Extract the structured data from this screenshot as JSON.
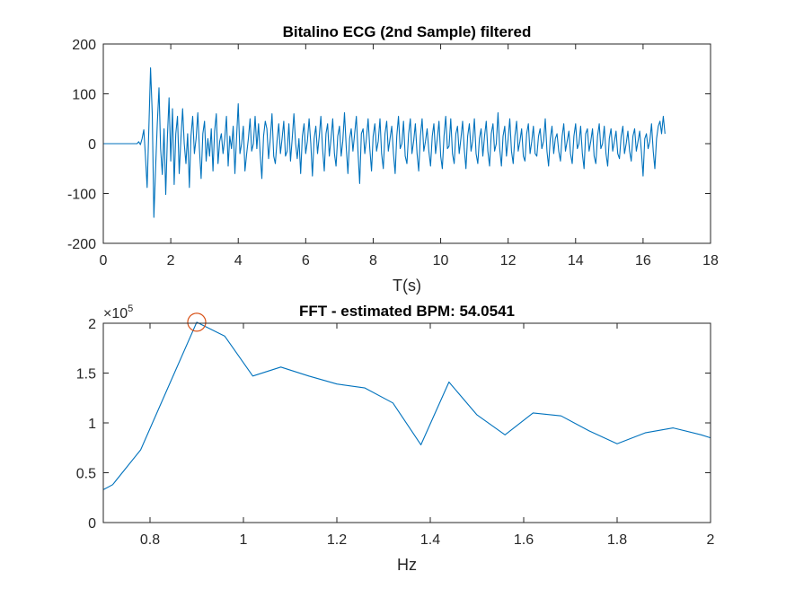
{
  "chart_data": [
    {
      "type": "line",
      "title": "Bitalino ECG (2nd Sample) filtered",
      "xlabel": "T(s)",
      "ylabel": "",
      "xlim": [
        0,
        18
      ],
      "ylim": [
        -200,
        200
      ],
      "xticks": [
        "0",
        "2",
        "4",
        "6",
        "8",
        "10",
        "12",
        "14",
        "16",
        "18"
      ],
      "yticks": [
        "-200",
        "-100",
        "0",
        "100",
        "200"
      ],
      "grid": false,
      "line_color": "#0072BD",
      "series": [
        {
          "x": [
            0,
            0.5,
            1.0,
            1.05,
            1.1,
            1.15,
            1.2,
            1.25,
            1.3,
            1.35,
            1.4,
            1.45,
            1.5,
            1.55,
            1.6,
            1.65,
            1.7,
            1.75,
            1.8,
            1.85,
            1.9,
            1.95,
            2.0,
            2.05,
            2.1,
            2.15,
            2.2,
            2.25,
            2.3,
            2.35,
            2.4,
            2.45,
            2.5,
            2.55,
            2.6,
            2.65,
            2.7,
            2.75,
            2.8,
            2.85,
            2.9,
            2.95,
            3.0,
            3.05,
            3.1,
            3.15,
            3.2,
            3.25,
            3.3,
            3.35,
            3.4,
            3.45,
            3.5,
            3.55,
            3.6,
            3.65,
            3.7,
            3.75,
            3.8,
            3.85,
            3.9,
            3.95,
            4.0,
            4.05,
            4.1,
            4.15,
            4.2,
            4.25,
            4.3,
            4.35,
            4.4,
            4.45,
            4.5,
            4.55,
            4.6,
            4.65,
            4.7,
            4.75,
            4.8,
            4.85,
            4.9,
            4.95,
            5.0,
            5.05,
            5.1,
            5.15,
            5.2,
            5.25,
            5.3,
            5.35,
            5.4,
            5.45,
            5.5,
            5.55,
            5.6,
            5.65,
            5.7,
            5.75,
            5.8,
            5.85,
            5.9,
            5.95,
            6.0,
            6.05,
            6.1,
            6.15,
            6.2,
            6.25,
            6.3,
            6.35,
            6.4,
            6.45,
            6.5,
            6.55,
            6.6,
            6.65,
            6.7,
            6.75,
            6.8,
            6.85,
            6.9,
            6.95,
            7.0,
            7.05,
            7.1,
            7.15,
            7.2,
            7.25,
            7.3,
            7.35,
            7.4,
            7.45,
            7.5,
            7.55,
            7.6,
            7.65,
            7.7,
            7.75,
            7.8,
            7.85,
            7.9,
            7.95,
            8.0,
            8.05,
            8.1,
            8.15,
            8.2,
            8.25,
            8.3,
            8.35,
            8.4,
            8.45,
            8.5,
            8.55,
            8.6,
            8.65,
            8.7,
            8.75,
            8.8,
            8.85,
            8.9,
            8.95,
            9.0,
            9.05,
            9.1,
            9.15,
            9.2,
            9.25,
            9.3,
            9.35,
            9.4,
            9.45,
            9.5,
            9.55,
            9.6,
            9.65,
            9.7,
            9.75,
            9.8,
            9.85,
            9.9,
            9.95,
            10.0,
            10.05,
            10.1,
            10.15,
            10.2,
            10.25,
            10.3,
            10.35,
            10.4,
            10.45,
            10.5,
            10.55,
            10.6,
            10.65,
            10.7,
            10.75,
            10.8,
            10.85,
            10.9,
            10.95,
            11.0,
            11.05,
            11.1,
            11.15,
            11.2,
            11.25,
            11.3,
            11.35,
            11.4,
            11.45,
            11.5,
            11.55,
            11.6,
            11.65,
            11.7,
            11.75,
            11.8,
            11.85,
            11.9,
            11.95,
            12.0,
            12.05,
            12.1,
            12.15,
            12.2,
            12.25,
            12.3,
            12.35,
            12.4,
            12.45,
            12.5,
            12.55,
            12.6,
            12.65,
            12.7,
            12.75,
            12.8,
            12.85,
            12.9,
            12.95,
            13.0,
            13.05,
            13.1,
            13.15,
            13.2,
            13.25,
            13.3,
            13.35,
            13.4,
            13.45,
            13.5,
            13.55,
            13.6,
            13.65,
            13.7,
            13.75,
            13.8,
            13.85,
            13.9,
            13.95,
            14.0,
            14.05,
            14.1,
            14.15,
            14.2,
            14.25,
            14.3,
            14.35,
            14.4,
            14.45,
            14.5,
            14.55,
            14.6,
            14.65,
            14.7,
            14.75,
            14.8,
            14.85,
            14.9,
            14.95,
            15.0,
            15.05,
            15.1,
            15.15,
            15.2,
            15.25,
            15.3,
            15.35,
            15.4,
            15.45,
            15.5,
            15.55,
            15.6,
            15.65,
            15.7,
            15.75,
            15.8,
            15.85,
            15.9,
            15.95,
            16.0,
            16.05,
            16.1,
            16.15,
            16.2,
            16.25,
            16.3,
            16.35,
            16.4,
            16.45,
            16.5,
            16.55,
            16.6,
            16.65
          ],
          "y": [
            0,
            0,
            0,
            4,
            -2,
            10,
            28,
            -25,
            -88,
            30,
            152,
            60,
            -148,
            -50,
            40,
            112,
            -10,
            -62,
            30,
            -102,
            15,
            92,
            -35,
            70,
            -82,
            20,
            55,
            -60,
            10,
            70,
            0,
            -40,
            20,
            -88,
            15,
            55,
            -20,
            10,
            62,
            -10,
            -70,
            20,
            45,
            -35,
            10,
            -25,
            30,
            -55,
            25,
            60,
            -40,
            5,
            20,
            -20,
            10,
            55,
            -45,
            15,
            -10,
            35,
            -60,
            10,
            80,
            -20,
            0,
            35,
            -55,
            -20,
            10,
            50,
            -15,
            0,
            55,
            -10,
            40,
            -20,
            -70,
            15,
            45,
            30,
            -30,
            10,
            60,
            -25,
            -40,
            5,
            40,
            -20,
            10,
            45,
            -25,
            -15,
            40,
            -35,
            10,
            60,
            0,
            -30,
            10,
            -60,
            15,
            40,
            -20,
            5,
            50,
            0,
            -65,
            10,
            35,
            -20,
            15,
            55,
            -10,
            -55,
            20,
            40,
            -25,
            10,
            50,
            -20,
            -45,
            15,
            35,
            -25,
            5,
            62,
            -5,
            -60,
            10,
            30,
            -15,
            20,
            55,
            -15,
            -80,
            20,
            30,
            -20,
            10,
            50,
            -10,
            -55,
            15,
            40,
            -15,
            5,
            50,
            -20,
            -50,
            20,
            45,
            -15,
            10,
            35,
            -20,
            -60,
            15,
            55,
            -10,
            0,
            45,
            -25,
            -40,
            20,
            50,
            -20,
            5,
            40,
            -20,
            -55,
            15,
            50,
            -15,
            5,
            30,
            -15,
            -45,
            15,
            40,
            -20,
            10,
            45,
            -25,
            -50,
            15,
            55,
            -10,
            -5,
            50,
            -20,
            -40,
            20,
            35,
            -20,
            10,
            45,
            -10,
            -50,
            15,
            40,
            -15,
            5,
            50,
            -20,
            -40,
            10,
            30,
            -25,
            15,
            45,
            -15,
            -45,
            20,
            40,
            -15,
            0,
            62,
            -10,
            -45,
            15,
            35,
            -25,
            10,
            50,
            -15,
            -40,
            15,
            45,
            -15,
            5,
            30,
            -25,
            -35,
            20,
            40,
            -20,
            5,
            35,
            -20,
            -25,
            15,
            30,
            -10,
            5,
            50,
            -15,
            -45,
            10,
            35,
            -20,
            10,
            20,
            -15,
            -35,
            15,
            40,
            -15,
            5,
            25,
            -20,
            -40,
            15,
            40,
            -10,
            0,
            35,
            -20,
            -50,
            20,
            30,
            -15,
            5,
            30,
            -25,
            -40,
            15,
            40,
            -10,
            0,
            35,
            -20,
            -45,
            10,
            30,
            -15,
            5,
            25,
            -20,
            -30,
            15,
            35,
            -20,
            0,
            25,
            -15,
            -35,
            15,
            30,
            -15,
            5,
            25,
            -15,
            -65,
            10,
            20,
            -10,
            5,
            40,
            -15,
            -50,
            10,
            35,
            45,
            20,
            55,
            20
          ]
        }
      ]
    },
    {
      "type": "line",
      "title": "FFT - estimated BPM: 54.0541",
      "xlabel": "Hz",
      "ylabel": "",
      "y_exponent_label": "×10",
      "y_exponent": "5",
      "xlim": [
        0.7,
        2
      ],
      "ylim": [
        0,
        2
      ],
      "xticks": [
        "0.8",
        "1",
        "1.2",
        "1.4",
        "1.6",
        "1.8",
        "2"
      ],
      "yticks": [
        "0",
        "0.5",
        "1",
        "1.5",
        "2"
      ],
      "grid": false,
      "line_color": "#0072BD",
      "marker_color": "#D95319",
      "series": [
        {
          "x": [
            0.7,
            0.72,
            0.78,
            0.84,
            0.9,
            0.96,
            1.02,
            1.08,
            1.14,
            1.2,
            1.26,
            1.32,
            1.38,
            1.44,
            1.5,
            1.56,
            1.62,
            1.68,
            1.74,
            1.8,
            1.86,
            1.92,
            1.98,
            2.0
          ],
          "y": [
            0.33,
            0.38,
            0.73,
            1.37,
            2.01,
            1.87,
            1.47,
            1.56,
            1.47,
            1.39,
            1.35,
            1.2,
            0.78,
            1.41,
            1.08,
            0.88,
            1.1,
            1.07,
            0.92,
            0.79,
            0.9,
            0.95,
            0.88,
            0.85
          ]
        }
      ],
      "peak": {
        "x": 0.9,
        "y": 2.01
      }
    }
  ]
}
